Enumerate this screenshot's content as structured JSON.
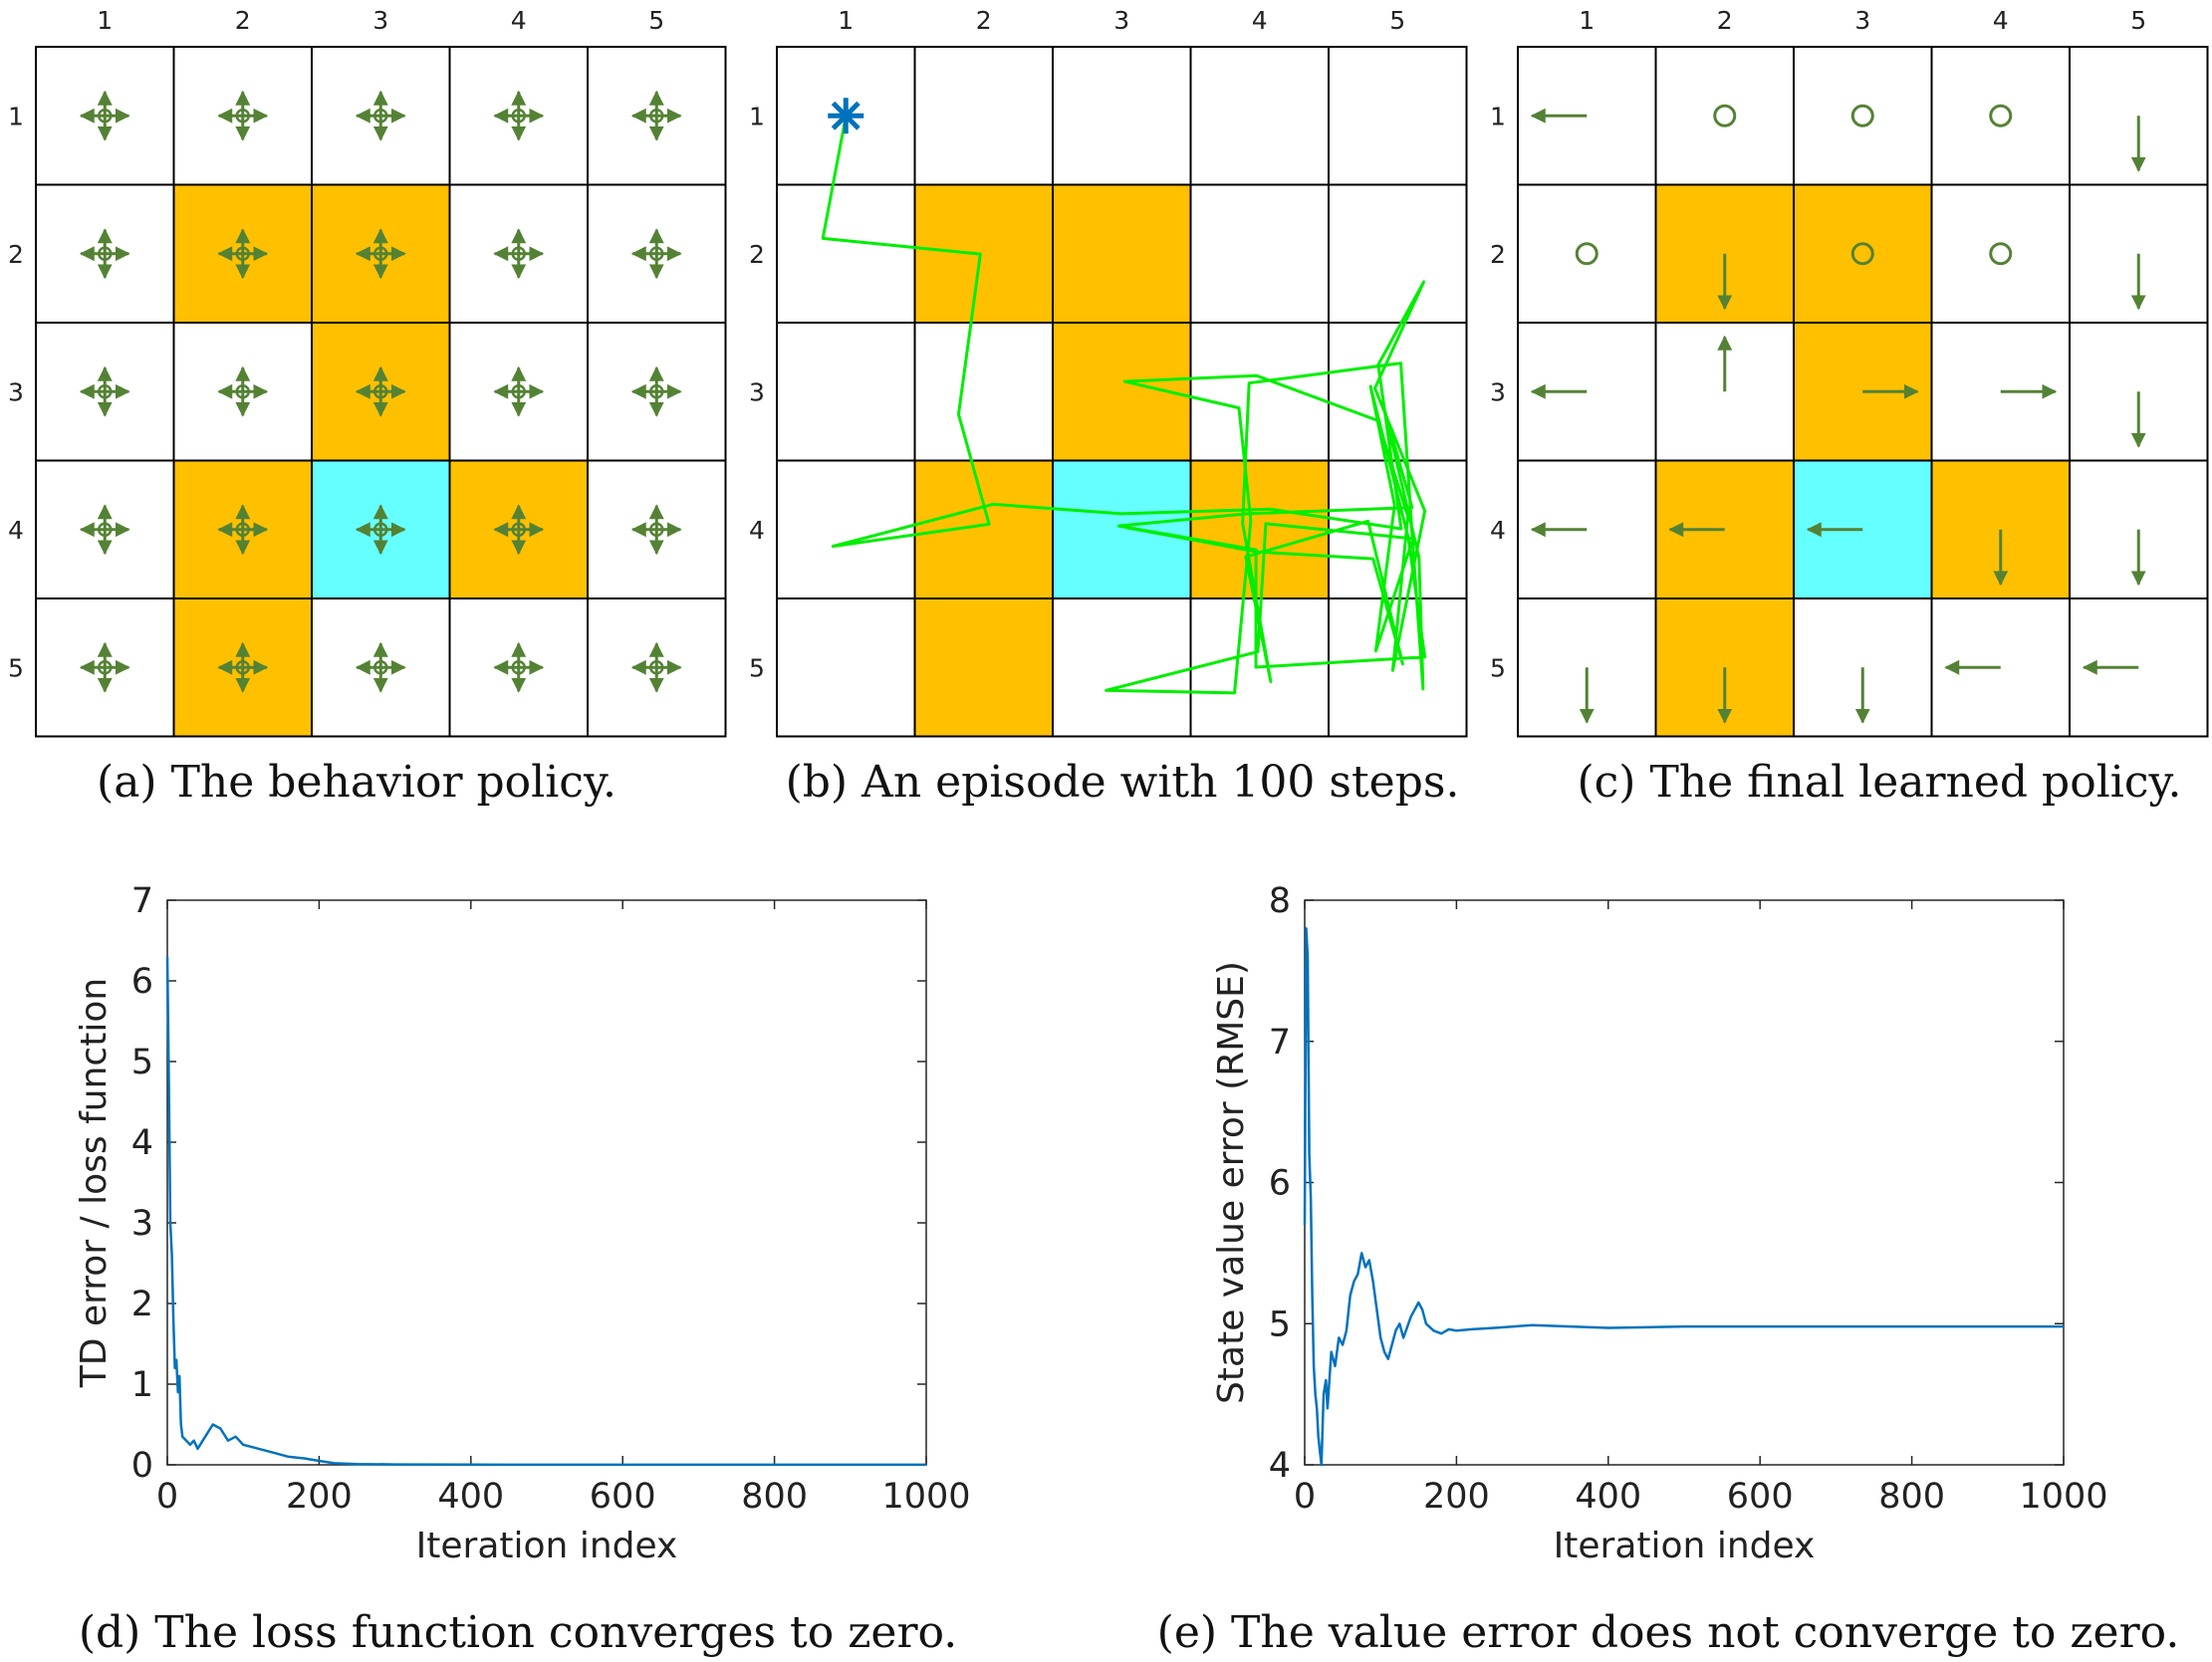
{
  "grid": {
    "rows": 5,
    "cols": 5,
    "col_labels": [
      "1",
      "2",
      "3",
      "4",
      "5"
    ],
    "row_labels": [
      "1",
      "2",
      "3",
      "4",
      "5"
    ],
    "forbidden_cells": [
      [
        2,
        2
      ],
      [
        2,
        3
      ],
      [
        3,
        3
      ],
      [
        4,
        2
      ],
      [
        4,
        4
      ],
      [
        5,
        2
      ]
    ],
    "target_cell": [
      4,
      3
    ],
    "colors": {
      "forbidden": "#FFC000",
      "target": "#66FFFF",
      "grid_line": "#000000",
      "policy_arrow": "#548235",
      "trajectory": "#00EE00",
      "start_marker": "#0072BD"
    }
  },
  "panels": {
    "a": {
      "caption": "(a) The behavior policy."
    },
    "b": {
      "caption": "(b) An episode with 100 steps.",
      "start_cell": [
        1,
        1
      ],
      "trajectory_cells": [
        [
          1,
          1
        ],
        [
          2,
          1
        ],
        [
          2,
          2
        ],
        [
          3,
          2
        ],
        [
          4,
          2
        ],
        [
          4,
          1
        ],
        [
          4,
          2
        ],
        [
          4,
          3
        ],
        [
          4,
          4
        ],
        [
          4,
          5
        ],
        [
          3,
          5
        ],
        [
          2,
          5
        ],
        [
          3,
          5
        ],
        [
          4,
          5
        ],
        [
          5,
          5
        ],
        [
          4,
          5
        ],
        [
          3,
          5
        ],
        [
          3,
          4
        ],
        [
          3,
          3
        ],
        [
          3,
          4
        ],
        [
          4,
          4
        ],
        [
          5,
          4
        ],
        [
          5,
          3
        ],
        [
          5,
          4
        ],
        [
          4,
          4
        ],
        [
          4,
          5
        ],
        [
          5,
          5
        ],
        [
          4,
          5
        ],
        [
          3,
          5
        ],
        [
          4,
          5
        ],
        [
          5,
          5
        ],
        [
          5,
          4
        ],
        [
          4,
          4
        ],
        [
          4,
          3
        ],
        [
          4,
          4
        ],
        [
          4,
          5
        ],
        [
          3,
          5
        ],
        [
          4,
          5
        ],
        [
          5,
          5
        ],
        [
          4,
          5
        ],
        [
          3,
          5
        ],
        [
          3,
          4
        ],
        [
          4,
          4
        ],
        [
          5,
          4
        ],
        [
          4,
          4
        ],
        [
          4,
          5
        ],
        [
          5,
          5
        ],
        [
          4,
          5
        ],
        [
          4,
          4
        ],
        [
          4,
          3
        ]
      ]
    },
    "c": {
      "caption": "(c) The final learned policy.",
      "policy": [
        [
          "left",
          "stay",
          "stay",
          "stay",
          "down"
        ],
        [
          "stay",
          "down",
          "stay",
          "stay",
          "down"
        ],
        [
          "left",
          "up",
          "right",
          "right",
          "down"
        ],
        [
          "left",
          "left",
          "left",
          "down",
          "down"
        ],
        [
          "down",
          "down",
          "down",
          "left",
          "left"
        ]
      ]
    },
    "d": {
      "caption": "(d) The loss function converges to zero."
    },
    "e": {
      "caption": "(e) The value error does not converge to zero."
    }
  },
  "chart_data": [
    {
      "type": "line",
      "id": "d",
      "xlabel": "Iteration index",
      "ylabel": "TD error / loss function",
      "xlim": [
        0,
        1000
      ],
      "ylim": [
        0,
        7
      ],
      "xticks": [
        0,
        200,
        400,
        600,
        800,
        1000
      ],
      "yticks": [
        0,
        1,
        2,
        3,
        4,
        5,
        6,
        7
      ],
      "color": "#0072BD",
      "x": [
        0,
        2,
        4,
        6,
        8,
        10,
        12,
        14,
        16,
        18,
        20,
        25,
        30,
        35,
        40,
        50,
        60,
        70,
        80,
        90,
        100,
        120,
        140,
        160,
        180,
        200,
        220,
        250,
        300,
        400,
        600,
        800,
        1000
      ],
      "y": [
        6.3,
        4.8,
        3.0,
        2.6,
        1.8,
        1.2,
        1.3,
        0.9,
        1.1,
        0.5,
        0.35,
        0.3,
        0.25,
        0.3,
        0.2,
        0.35,
        0.5,
        0.45,
        0.3,
        0.35,
        0.25,
        0.2,
        0.15,
        0.1,
        0.08,
        0.05,
        0.02,
        0.01,
        0.005,
        0.002,
        0.001,
        0.001,
        0.001
      ]
    },
    {
      "type": "line",
      "id": "e",
      "xlabel": "Iteration index",
      "ylabel": "State value error (RMSE)",
      "xlim": [
        0,
        1000
      ],
      "ylim": [
        4,
        8
      ],
      "xticks": [
        0,
        200,
        400,
        600,
        800,
        1000
      ],
      "yticks": [
        4,
        5,
        6,
        7,
        8
      ],
      "color": "#0072BD",
      "x": [
        0,
        2,
        4,
        6,
        8,
        10,
        12,
        14,
        16,
        18,
        20,
        22,
        25,
        28,
        30,
        35,
        40,
        45,
        50,
        55,
        60,
        65,
        70,
        75,
        80,
        85,
        90,
        95,
        100,
        105,
        110,
        115,
        120,
        125,
        130,
        140,
        150,
        155,
        160,
        170,
        180,
        190,
        200,
        220,
        250,
        300,
        400,
        500,
        600,
        700,
        800,
        900,
        1000
      ],
      "y": [
        5.7,
        7.8,
        7.6,
        6.2,
        5.9,
        5.2,
        4.7,
        4.5,
        4.4,
        4.2,
        4.1,
        4.0,
        4.5,
        4.6,
        4.4,
        4.8,
        4.7,
        4.9,
        4.85,
        4.95,
        5.2,
        5.3,
        5.35,
        5.5,
        5.4,
        5.45,
        5.3,
        5.1,
        4.9,
        4.8,
        4.75,
        4.85,
        4.95,
        5.0,
        4.9,
        5.05,
        5.15,
        5.1,
        5.0,
        4.95,
        4.93,
        4.96,
        4.95,
        4.96,
        4.97,
        4.99,
        4.97,
        4.98,
        4.98,
        4.98,
        4.98,
        4.98,
        4.98
      ]
    }
  ]
}
